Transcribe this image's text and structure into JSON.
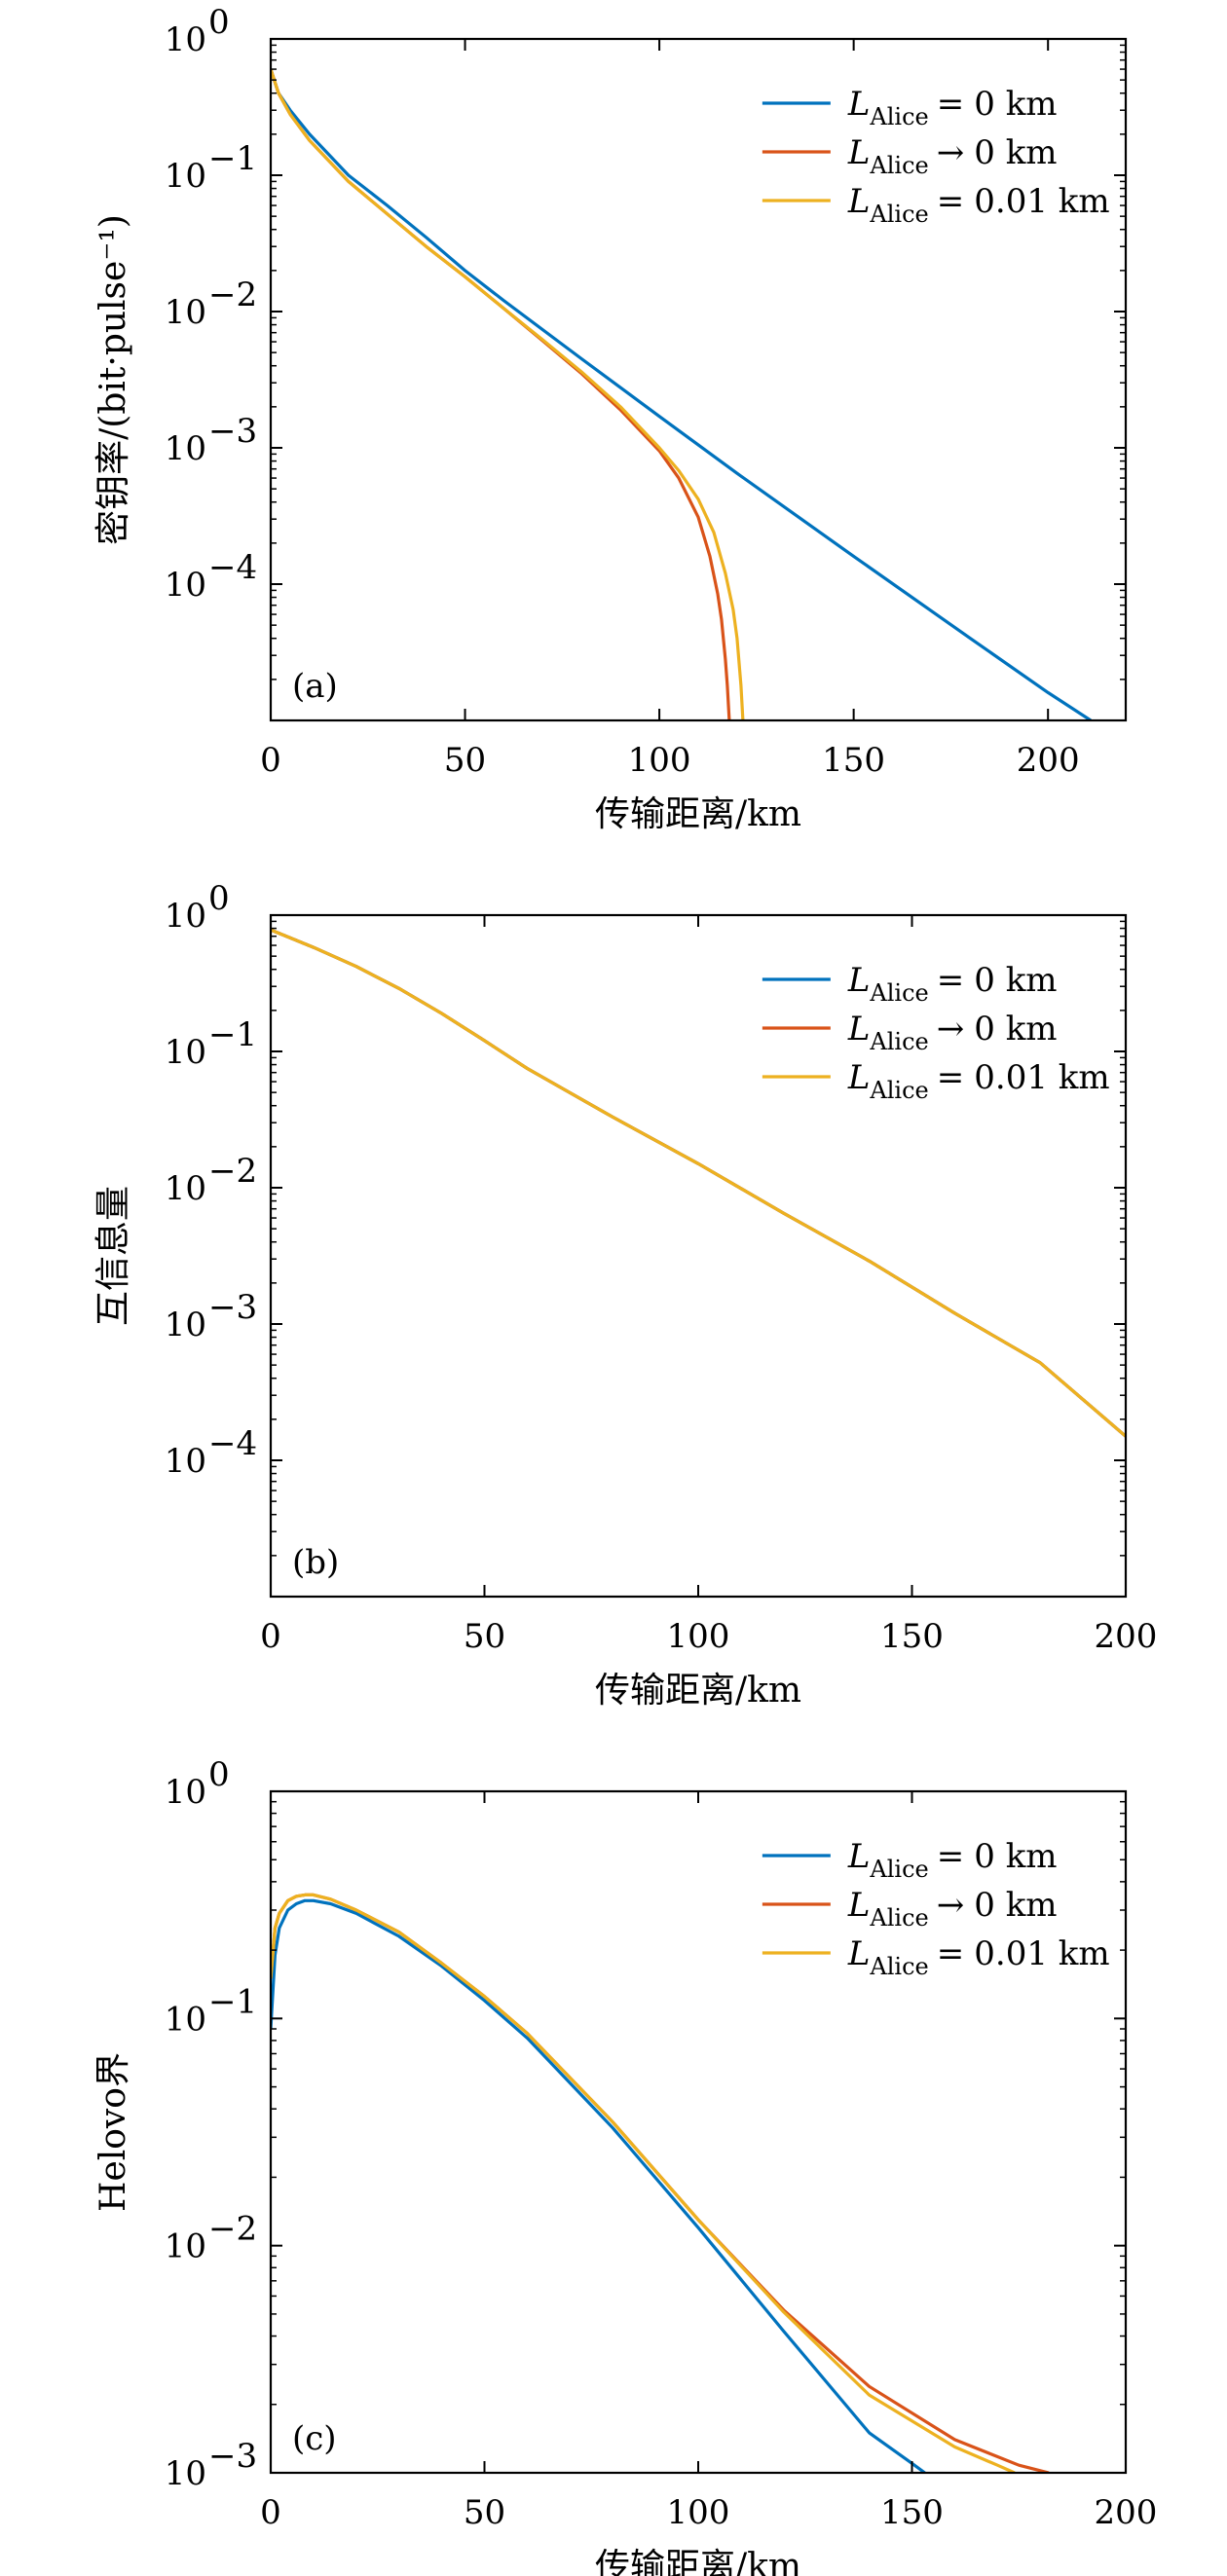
{
  "chart_data": [
    {
      "type": "line",
      "panel_label": "(a)",
      "xlabel": "传输距离/km",
      "ylabel": "密钥率/(bit·pulse⁻¹)",
      "y_scale": "log",
      "xlim": [
        0,
        220
      ],
      "ylim": [
        1e-05,
        1
      ],
      "xticks": [
        0,
        50,
        100,
        150,
        200
      ],
      "xtick_labels": [
        "0",
        "50",
        "100",
        "150",
        "200"
      ],
      "yticks": [
        1,
        0.1,
        0.01,
        0.001,
        0.0001
      ],
      "ytick_labels": [
        {
          "base": "10",
          "exp": "0"
        },
        {
          "base": "10",
          "exp": "−1"
        },
        {
          "base": "10",
          "exp": "−2"
        },
        {
          "base": "10",
          "exp": "−3"
        },
        {
          "base": "10",
          "exp": "−4"
        }
      ],
      "legend_position": "top-right",
      "series": [
        {
          "name": "L_Alice = 0 km",
          "legend": {
            "sym": "L",
            "sub": "Alice",
            "rel": "=",
            "val": "0 km"
          },
          "color": "#0072BD",
          "x": [
            0,
            2,
            5,
            10,
            20,
            30,
            40,
            50,
            60,
            80,
            100,
            120,
            150,
            180,
            200,
            211
          ],
          "y": [
            0.6,
            0.4,
            0.3,
            0.2,
            0.1,
            0.06,
            0.035,
            0.02,
            0.012,
            0.0045,
            0.0017,
            0.00065,
            0.00016,
            4e-05,
            1.6e-05,
            1e-05
          ]
        },
        {
          "name": "L_Alice → 0 km",
          "legend": {
            "sym": "L",
            "sub": "Alice",
            "rel": "→",
            "val": "0 km"
          },
          "color": "#D95319",
          "x": [
            0,
            2,
            5,
            10,
            20,
            30,
            40,
            50,
            60,
            70,
            80,
            90,
            100,
            105,
            110,
            113,
            115,
            116,
            117,
            117.5,
            118
          ],
          "y": [
            0.6,
            0.4,
            0.28,
            0.18,
            0.09,
            0.052,
            0.03,
            0.018,
            0.0105,
            0.0061,
            0.0035,
            0.0019,
            0.00095,
            0.0006,
            0.00031,
            0.00016,
            8.5e-05,
            5.5e-05,
            2.8e-05,
            1.8e-05,
            1e-05
          ]
        },
        {
          "name": "L_Alice = 0.01 km",
          "legend": {
            "sym": "L",
            "sub": "Alice",
            "rel": "=",
            "val": "0.01 km"
          },
          "color": "#EDB120",
          "x": [
            0,
            2,
            5,
            10,
            20,
            30,
            40,
            50,
            60,
            70,
            80,
            90,
            100,
            105,
            110,
            114,
            117,
            119,
            120,
            121,
            121.5
          ],
          "y": [
            0.6,
            0.4,
            0.28,
            0.18,
            0.09,
            0.052,
            0.03,
            0.018,
            0.0105,
            0.0062,
            0.0036,
            0.002,
            0.001,
            0.00068,
            0.00042,
            0.00024,
            0.00012,
            6.5e-05,
            4e-05,
            1.8e-05,
            1e-05
          ]
        }
      ]
    },
    {
      "type": "line",
      "panel_label": "(b)",
      "xlabel": "传输距离/km",
      "ylabel": "互信息量",
      "y_scale": "log",
      "xlim": [
        0,
        200
      ],
      "ylim": [
        1e-05,
        1
      ],
      "xticks": [
        0,
        50,
        100,
        150,
        200
      ],
      "xtick_labels": [
        "0",
        "50",
        "100",
        "150",
        "200"
      ],
      "yticks": [
        1,
        0.1,
        0.01,
        0.001,
        0.0001
      ],
      "ytick_labels": [
        {
          "base": "10",
          "exp": "0"
        },
        {
          "base": "10",
          "exp": "−1"
        },
        {
          "base": "10",
          "exp": "−2"
        },
        {
          "base": "10",
          "exp": "−3"
        },
        {
          "base": "10",
          "exp": "−4"
        }
      ],
      "legend_position": "top-right",
      "series": [
        {
          "name": "L_Alice = 0 km",
          "legend": {
            "sym": "L",
            "sub": "Alice",
            "rel": "=",
            "val": "0 km"
          },
          "color": "#0072BD",
          "x": [
            0,
            10,
            20,
            30,
            40,
            50,
            60,
            80,
            100,
            120,
            140,
            160,
            180,
            200
          ],
          "y": [
            0.78,
            0.58,
            0.42,
            0.29,
            0.19,
            0.12,
            0.075,
            0.033,
            0.015,
            0.0065,
            0.0029,
            0.0012,
            0.00052,
            0.00015
          ]
        },
        {
          "name": "L_Alice → 0 km",
          "legend": {
            "sym": "L",
            "sub": "Alice",
            "rel": "→",
            "val": "0 km"
          },
          "color": "#D95319",
          "x": [
            0,
            10,
            20,
            30,
            40,
            50,
            60,
            80,
            100,
            120,
            140,
            160,
            180,
            200
          ],
          "y": [
            0.78,
            0.58,
            0.42,
            0.29,
            0.19,
            0.12,
            0.075,
            0.033,
            0.015,
            0.0065,
            0.0029,
            0.0012,
            0.00052,
            0.00015
          ]
        },
        {
          "name": "L_Alice = 0.01 km",
          "legend": {
            "sym": "L",
            "sub": "Alice",
            "rel": "=",
            "val": "0.01 km"
          },
          "color": "#EDB120",
          "x": [
            0,
            10,
            20,
            30,
            40,
            50,
            60,
            80,
            100,
            120,
            140,
            160,
            180,
            200
          ],
          "y": [
            0.78,
            0.58,
            0.42,
            0.29,
            0.19,
            0.12,
            0.075,
            0.033,
            0.015,
            0.0065,
            0.0029,
            0.0012,
            0.00052,
            0.00015
          ]
        }
      ]
    },
    {
      "type": "line",
      "panel_label": "(c)",
      "xlabel": "传输距离/km",
      "ylabel": "Helovo界",
      "y_scale": "log",
      "xlim": [
        0,
        200
      ],
      "ylim": [
        0.001,
        1
      ],
      "xticks": [
        0,
        50,
        100,
        150,
        200
      ],
      "xtick_labels": [
        "0",
        "50",
        "100",
        "150",
        "200"
      ],
      "yticks": [
        1,
        0.1,
        0.01,
        0.001
      ],
      "ytick_labels": [
        {
          "base": "10",
          "exp": "0"
        },
        {
          "base": "10",
          "exp": "−1"
        },
        {
          "base": "10",
          "exp": "−2"
        },
        {
          "base": "10",
          "exp": "−3"
        }
      ],
      "legend_position": "top-right",
      "series": [
        {
          "name": "L_Alice = 0 km",
          "legend": {
            "sym": "L",
            "sub": "Alice",
            "rel": "=",
            "val": "0 km"
          },
          "color": "#0072BD",
          "x": [
            0,
            1,
            2,
            4,
            6,
            8,
            10,
            14,
            20,
            30,
            40,
            50,
            60,
            80,
            100,
            120,
            140,
            150,
            153
          ],
          "y": [
            0.09,
            0.19,
            0.25,
            0.3,
            0.32,
            0.33,
            0.33,
            0.32,
            0.29,
            0.23,
            0.17,
            0.12,
            0.082,
            0.033,
            0.012,
            0.0042,
            0.0015,
            0.0011,
            0.001
          ]
        },
        {
          "name": "L_Alice → 0 km",
          "legend": {
            "sym": "L",
            "sub": "Alice",
            "rel": "→",
            "val": "0 km"
          },
          "color": "#D95319",
          "x": [
            0,
            1,
            2,
            4,
            6,
            8,
            10,
            14,
            20,
            30,
            40,
            50,
            60,
            80,
            100,
            120,
            140,
            160,
            175,
            182
          ],
          "y": [
            0.15,
            0.25,
            0.29,
            0.33,
            0.345,
            0.35,
            0.35,
            0.335,
            0.3,
            0.24,
            0.175,
            0.125,
            0.086,
            0.035,
            0.013,
            0.0052,
            0.0024,
            0.0014,
            0.00108,
            0.001
          ]
        },
        {
          "name": "L_Alice = 0.01 km",
          "legend": {
            "sym": "L",
            "sub": "Alice",
            "rel": "=",
            "val": "0.01 km"
          },
          "color": "#EDB120",
          "x": [
            0,
            1,
            2,
            4,
            6,
            8,
            10,
            14,
            20,
            30,
            40,
            50,
            60,
            80,
            100,
            120,
            140,
            160,
            170,
            174
          ],
          "y": [
            0.15,
            0.25,
            0.29,
            0.33,
            0.345,
            0.35,
            0.35,
            0.335,
            0.3,
            0.24,
            0.175,
            0.125,
            0.086,
            0.035,
            0.013,
            0.0051,
            0.0022,
            0.0013,
            0.00108,
            0.001
          ]
        }
      ]
    }
  ]
}
